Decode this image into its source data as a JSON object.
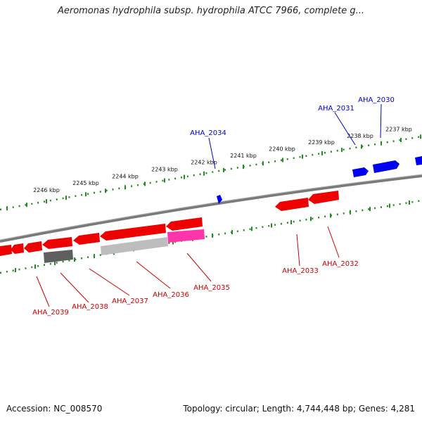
{
  "title": "Aeromonas hydrophila subsp. hydrophila ATCC 7966, complete g...",
  "footer": {
    "accession": "Accession: NC_008570",
    "summary": "Topology: circular; Length: 4,744,448 bp; Genes: 4,281"
  },
  "colors": {
    "forward": "#0000ee",
    "reverse": "#ee0000",
    "backbone": "#888888",
    "ticks": "#228b22",
    "pseudo_gray": "#bdbdbd",
    "dark_gray": "#6a6a6a",
    "magenta": "#ff33aa"
  },
  "ruler": {
    "labels": [
      "2237 kbp",
      "2238 kbp",
      "2239 kbp",
      "2240 kbp",
      "2241 kbp",
      "2242 kbp",
      "2243 kbp",
      "2244 kbp",
      "2245 kbp",
      "2246 kbp"
    ]
  },
  "genes": {
    "forward": [
      "AHA_2030",
      "AHA_2031",
      "AHA_2034"
    ],
    "reverse": [
      "AHA_2032",
      "AHA_2033",
      "AHA_2035",
      "AHA_2036",
      "AHA_2037",
      "AHA_2038",
      "AHA_2039"
    ]
  }
}
